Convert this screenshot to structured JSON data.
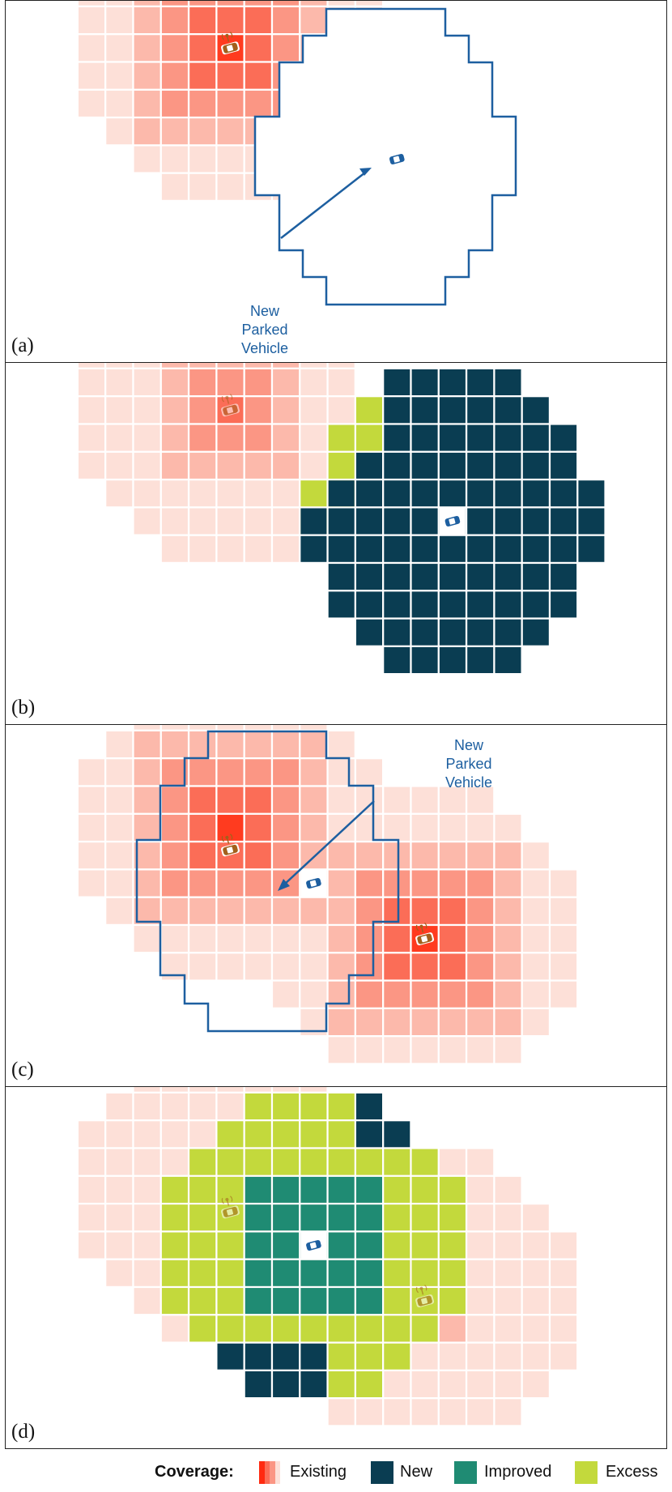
{
  "colors": {
    "existing": [
      "#ff3b1f",
      "#fb6d57",
      "#fb9684",
      "#fcb9ab",
      "#fde0d8"
    ],
    "new": "#0a3d52",
    "improved": "#1f8b73",
    "excess": "#c3d93c",
    "outline": "#1d5fa0",
    "vehicle_new": "#1d5fa0",
    "vehicle_existing": "#a3601c"
  },
  "panels": [
    {
      "label": "(a)",
      "callout": [
        "New",
        "Parked",
        "Vehicle"
      ]
    },
    {
      "label": "(b)"
    },
    {
      "label": "(c)",
      "callout": [
        "New",
        "Parked",
        "Vehicle"
      ]
    },
    {
      "label": "(d)"
    }
  ],
  "legend": {
    "title": "Coverage:",
    "items": [
      "Existing",
      "New",
      "Improved",
      "Excess"
    ]
  }
}
